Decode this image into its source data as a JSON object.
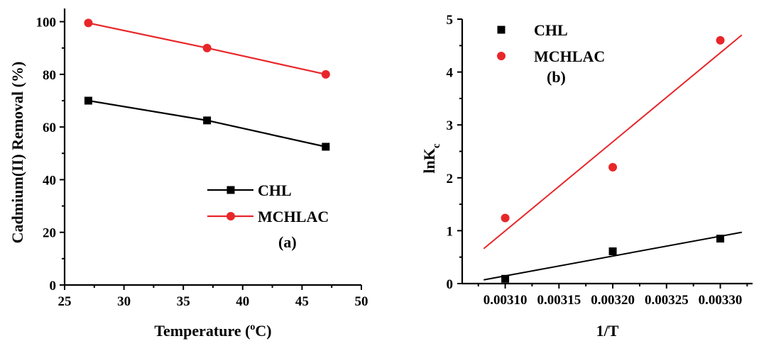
{
  "colors": {
    "black": "#000000",
    "red": "#e8262a"
  },
  "chart_data": [
    {
      "type": "line",
      "panel_label": "(a)",
      "xlabel": {
        "main": "Temperature (",
        "sup": "o",
        "tail": "C)"
      },
      "ylabel": "Cadmium(II) Removal (%)",
      "xlim": [
        25,
        50
      ],
      "ylim": [
        0,
        105
      ],
      "xticks": [
        "25",
        "30",
        "35",
        "40",
        "45",
        "50"
      ],
      "yticks": [
        "0",
        "20",
        "40",
        "60",
        "80",
        "100"
      ],
      "x": [
        27,
        37,
        47
      ],
      "series": [
        {
          "name": "CHL",
          "marker": "square",
          "color": "#000000",
          "values": [
            70,
            62.5,
            52.5
          ]
        },
        {
          "name": "MCHLAC",
          "marker": "circle",
          "color": "#e8262a",
          "values": [
            99.5,
            90,
            80
          ]
        }
      ],
      "legend_position": "center-right"
    },
    {
      "type": "scatter",
      "panel_label": "(b)",
      "xlabel": "1/T",
      "ylabel": {
        "main": "lnK",
        "sub": "c"
      },
      "xlim": [
        0.00306,
        0.00333
      ],
      "ylim": [
        0,
        5
      ],
      "xticks": [
        "0.00310",
        "0.00315",
        "0.00320",
        "0.00325",
        "0.00330"
      ],
      "yticks": [
        "0",
        "1",
        "2",
        "3",
        "4",
        "5"
      ],
      "series": [
        {
          "name": "CHL",
          "marker": "square",
          "color": "#000000",
          "x": [
            0.0031,
            0.0032,
            0.0033
          ],
          "y": [
            0.09,
            0.61,
            0.85
          ],
          "fit": {
            "x": [
              0.00308,
              0.00332
            ],
            "y": [
              0.07,
              0.97
            ]
          }
        },
        {
          "name": "MCHLAC",
          "marker": "circle",
          "color": "#e8262a",
          "x": [
            0.0031,
            0.0032,
            0.0033
          ],
          "y": [
            1.24,
            2.2,
            4.6
          ],
          "fit": {
            "x": [
              0.00308,
              0.00332
            ],
            "y": [
              0.66,
              4.7
            ]
          }
        }
      ],
      "legend_position": "top-left"
    }
  ]
}
